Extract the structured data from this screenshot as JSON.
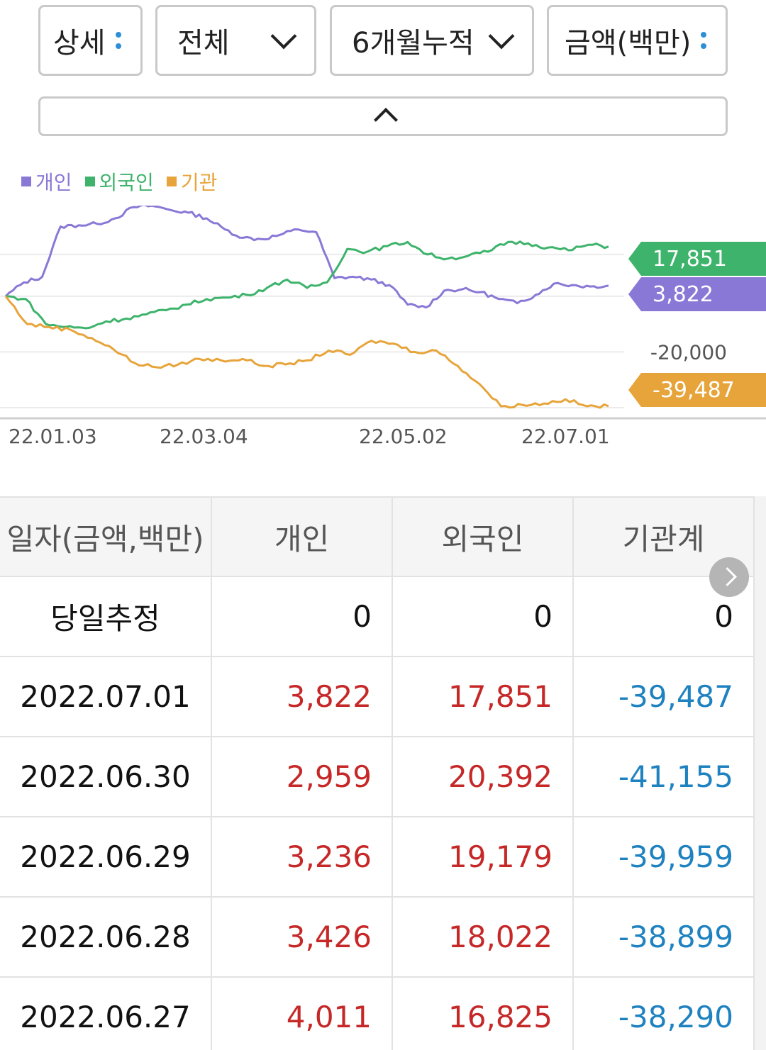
{
  "filters": {
    "view": "상세",
    "scope": "전체",
    "period": "6개월누적",
    "unit": "금액(백만)"
  },
  "legend": [
    {
      "label": "개인",
      "color": "#8a78d6"
    },
    {
      "label": "외국인",
      "color": "#3db36b"
    },
    {
      "label": "기관",
      "color": "#e7a43a"
    }
  ],
  "chart_data": {
    "type": "line",
    "x_ticks": [
      "22.01.03",
      "22.03.04",
      "22.05.02",
      "22.07.01"
    ],
    "y_gridline_label": "-20,000",
    "ylim": [
      -40000,
      30000
    ],
    "series": [
      {
        "name": "개인",
        "color": "#8a78d6",
        "end_label": "3,822",
        "values": [
          0,
          5000,
          7000,
          25000,
          25500,
          26000,
          28000,
          32000,
          32500,
          31000,
          30000,
          28000,
          24000,
          21000,
          20500,
          22000,
          24000,
          23000,
          6500,
          7000,
          6000,
          4000,
          -3000,
          -4000,
          2000,
          2500,
          1500,
          -1000,
          -2500,
          500,
          4500,
          4000,
          3500,
          3822
        ]
      },
      {
        "name": "외국인",
        "color": "#3db36b",
        "end_label": "17,851",
        "values": [
          0,
          -1000,
          -10000,
          -11000,
          -11500,
          -9000,
          -8000,
          -6500,
          -5000,
          -3000,
          -1000,
          -500,
          500,
          3000,
          6000,
          3000,
          5000,
          17000,
          16000,
          18000,
          19500,
          15000,
          13500,
          14500,
          16000,
          19500,
          19000,
          17500,
          16500,
          18500,
          17851
        ]
      },
      {
        "name": "기관",
        "color": "#e7a43a",
        "end_label": "-39,487",
        "values": [
          0,
          -10000,
          -11000,
          -12000,
          -15000,
          -19000,
          -24000,
          -25500,
          -24500,
          -22500,
          -23000,
          -22500,
          -25000,
          -24500,
          -23000,
          -19500,
          -21000,
          -16000,
          -17000,
          -20000,
          -19500,
          -25000,
          -31500,
          -39500,
          -39000,
          -38500,
          -37000,
          -39500,
          -39487
        ]
      }
    ]
  },
  "table": {
    "headers": [
      "일자(금액,백만)",
      "개인",
      "외국인",
      "기관계"
    ],
    "estimate_row": {
      "label": "당일추정",
      "values": [
        "0",
        "0",
        "0"
      ]
    },
    "rows": [
      {
        "date": "2022.07.01",
        "individual": "3,822",
        "foreign": "17,851",
        "institution": "-39,487"
      },
      {
        "date": "2022.06.30",
        "individual": "2,959",
        "foreign": "20,392",
        "institution": "-41,155"
      },
      {
        "date": "2022.06.29",
        "individual": "3,236",
        "foreign": "19,179",
        "institution": "-39,959"
      },
      {
        "date": "2022.06.28",
        "individual": "3,426",
        "foreign": "18,022",
        "institution": "-38,899"
      },
      {
        "date": "2022.06.27",
        "individual": "4,011",
        "foreign": "16,825",
        "institution": "-38,290"
      }
    ]
  }
}
